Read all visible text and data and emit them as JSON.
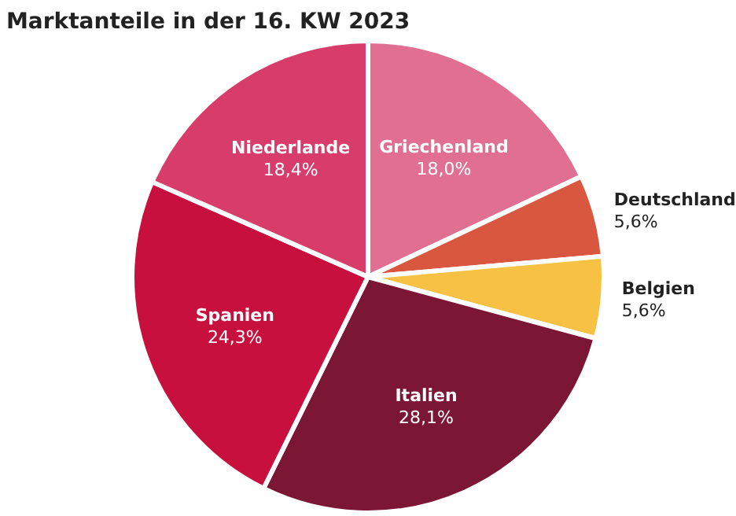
{
  "chart_data": {
    "type": "pie",
    "title": "Marktanteile in der 16. KW 2023",
    "categories": [
      "Griechenland",
      "Deutschland",
      "Belgien",
      "Italien",
      "Spanien",
      "Niederlande"
    ],
    "values": [
      18.0,
      5.6,
      5.6,
      28.1,
      24.3,
      18.4
    ],
    "value_labels": [
      "18,0%",
      "5,6%",
      "5,6%",
      "28,1%",
      "24,3%",
      "18,4%"
    ],
    "colors": [
      "#e06f92",
      "#d9573e",
      "#f7c244",
      "#7b1634",
      "#c8103f",
      "#d73c6b"
    ],
    "legend": false
  }
}
